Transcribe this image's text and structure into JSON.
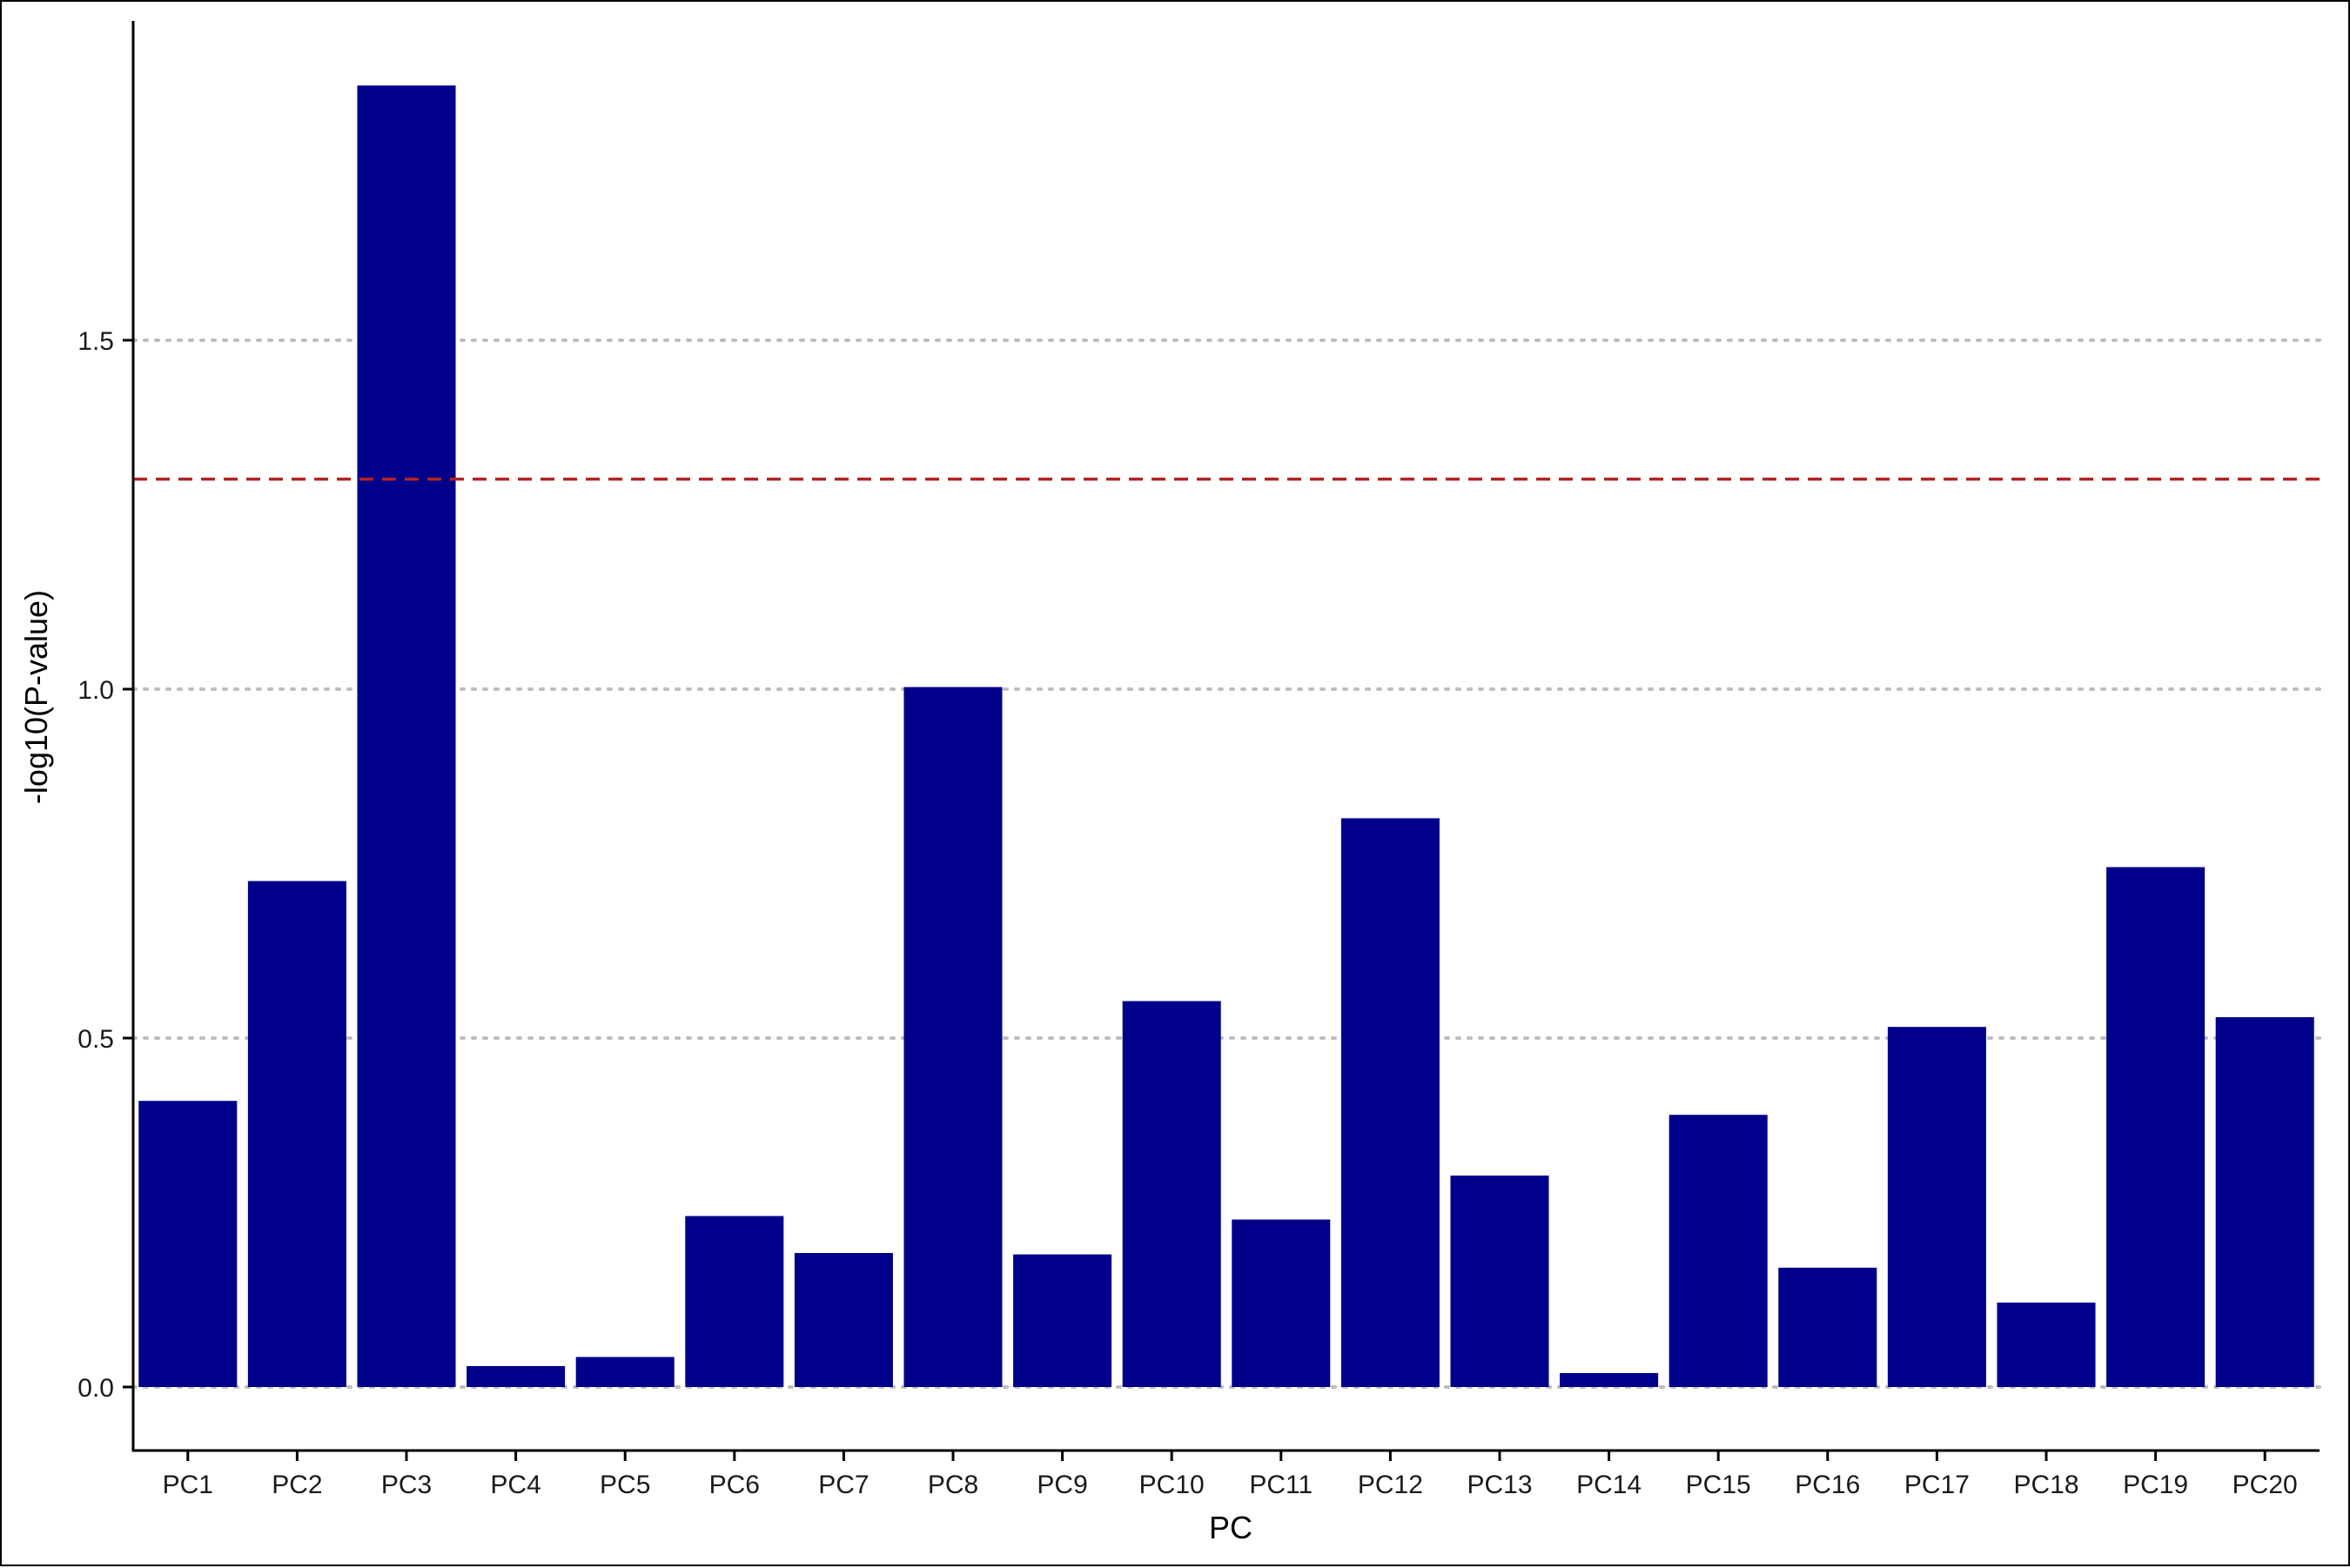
{
  "chart_data": {
    "type": "bar",
    "title": "",
    "xlabel": "PC",
    "ylabel": "-log10(P-value)",
    "categories": [
      "PC1",
      "PC2",
      "PC3",
      "PC4",
      "PC5",
      "PC6",
      "PC7",
      "PC8",
      "PC9",
      "PC10",
      "PC11",
      "PC12",
      "PC13",
      "PC14",
      "PC15",
      "PC16",
      "PC17",
      "PC18",
      "PC19",
      "PC20"
    ],
    "values": [
      0.41,
      0.725,
      1.865,
      0.03,
      0.043,
      0.245,
      0.192,
      1.003,
      0.19,
      0.553,
      0.24,
      0.815,
      0.303,
      0.02,
      0.39,
      0.171,
      0.516,
      0.121,
      0.745,
      0.53
    ],
    "ylim": [
      -0.09,
      1.955
    ],
    "yticks": [
      0.0,
      0.5,
      1.0,
      1.5
    ],
    "ytick_labels": [
      "0.0",
      "0.5",
      "1.0",
      "1.5"
    ],
    "threshold": 1.301,
    "grid": "horizontal-dotted",
    "legend": "none",
    "colors": {
      "bar": "#00008B",
      "threshold_line": "#B22222",
      "grid": "#BEBEBE",
      "axis": "#000000"
    }
  }
}
